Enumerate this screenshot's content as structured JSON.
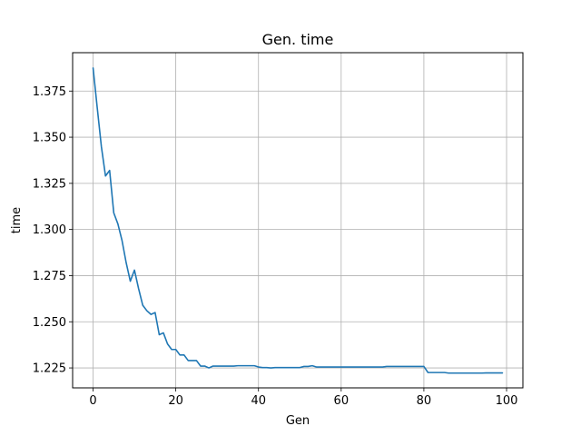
{
  "chart_data": {
    "type": "line",
    "title": "Gen. time",
    "xlabel": "Gen",
    "ylabel": "time",
    "xlim": [
      -4.95,
      103.95
    ],
    "ylim": [
      1.2142,
      1.3958
    ],
    "xticks": [
      0,
      20,
      40,
      60,
      80,
      100
    ],
    "yticks": [
      1.225,
      1.25,
      1.275,
      1.3,
      1.325,
      1.35,
      1.375
    ],
    "xtick_labels": [
      "0",
      "20",
      "40",
      "60",
      "80",
      "100"
    ],
    "ytick_labels": [
      "1.225",
      "1.250",
      "1.275",
      "1.300",
      "1.325",
      "1.350",
      "1.375"
    ],
    "grid": true,
    "series": [
      {
        "color": "#1f77b4",
        "x": [
          0,
          1,
          2,
          3,
          4,
          5,
          6,
          7,
          8,
          9,
          10,
          11,
          12,
          13,
          14,
          15,
          16,
          17,
          18,
          19,
          20,
          21,
          22,
          23,
          24,
          25,
          26,
          27,
          28,
          29,
          30,
          31,
          32,
          33,
          34,
          35,
          36,
          37,
          38,
          39,
          40,
          41,
          42,
          43,
          44,
          45,
          46,
          47,
          48,
          49,
          50,
          51,
          52,
          53,
          54,
          55,
          56,
          57,
          58,
          59,
          60,
          61,
          62,
          63,
          64,
          65,
          66,
          67,
          68,
          69,
          70,
          71,
          72,
          73,
          74,
          75,
          76,
          77,
          78,
          79,
          80,
          81,
          82,
          83,
          84,
          85,
          86,
          87,
          88,
          89,
          90,
          91,
          92,
          93,
          94,
          95,
          96,
          97,
          98,
          99
        ],
        "y": [
          1.3875,
          1.366,
          1.345,
          1.329,
          1.332,
          1.309,
          1.303,
          1.294,
          1.282,
          1.272,
          1.278,
          1.268,
          1.259,
          1.256,
          1.254,
          1.255,
          1.243,
          1.244,
          1.238,
          1.235,
          1.235,
          1.232,
          1.232,
          1.229,
          1.229,
          1.229,
          1.226,
          1.226,
          1.225,
          1.226,
          1.226,
          1.226,
          1.226,
          1.226,
          1.226,
          1.2262,
          1.2262,
          1.2262,
          1.2262,
          1.2262,
          1.2255,
          1.2252,
          1.2252,
          1.225,
          1.2252,
          1.2252,
          1.2252,
          1.2252,
          1.2252,
          1.2252,
          1.2252,
          1.2258,
          1.2258,
          1.2262,
          1.2255,
          1.2255,
          1.2255,
          1.2255,
          1.2255,
          1.2255,
          1.2255,
          1.2255,
          1.2255,
          1.2255,
          1.2255,
          1.2255,
          1.2255,
          1.2255,
          1.2255,
          1.2255,
          1.2255,
          1.2258,
          1.2258,
          1.2258,
          1.2258,
          1.2258,
          1.2258,
          1.2258,
          1.2258,
          1.2258,
          1.2258,
          1.2225,
          1.2225,
          1.2225,
          1.2225,
          1.2225,
          1.2222,
          1.2222,
          1.2222,
          1.2222,
          1.2222,
          1.2222,
          1.2222,
          1.2222,
          1.2222,
          1.2223,
          1.2223,
          1.2223,
          1.2223,
          1.2223
        ]
      }
    ]
  }
}
